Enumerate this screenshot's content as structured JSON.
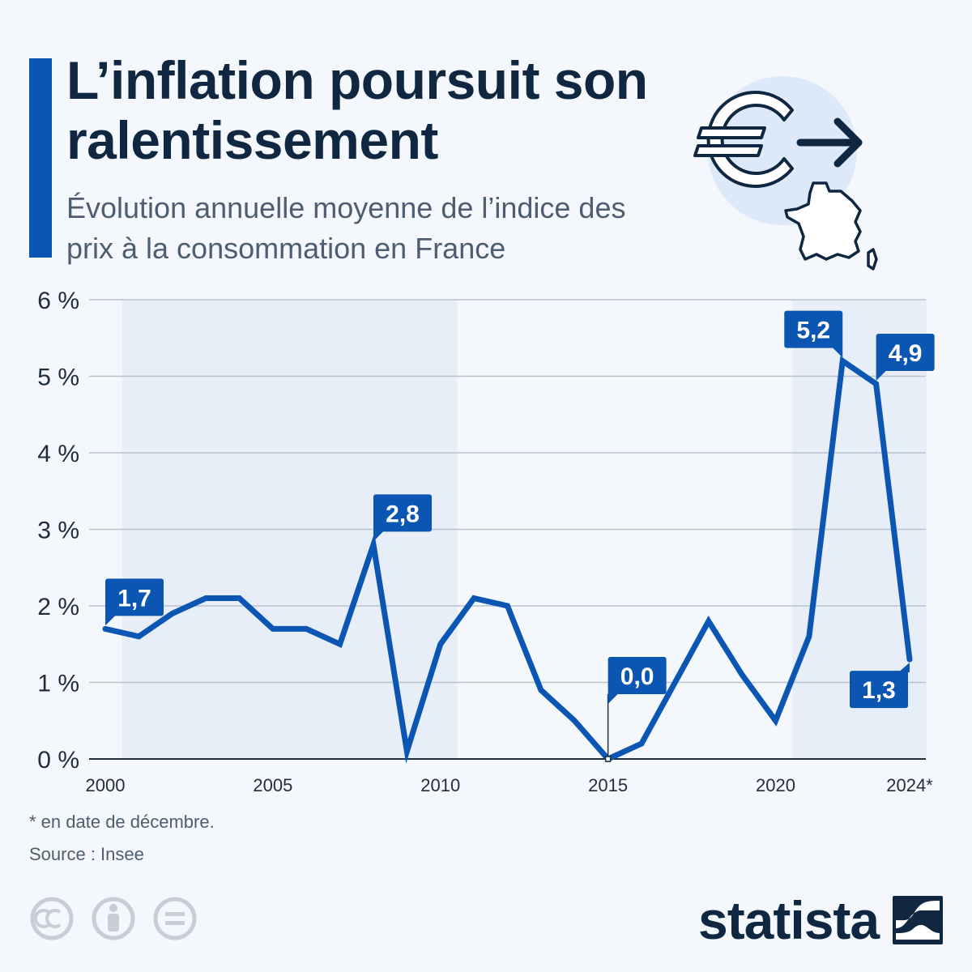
{
  "header": {
    "title": "L’inflation poursuit son ralentissement",
    "subtitle": "Évolution annuelle moyenne de l’indice des prix à la consommation en France"
  },
  "hero": {
    "icons": [
      "euro-icon",
      "arrow-right-icon",
      "france-map-icon"
    ]
  },
  "chart_data": {
    "type": "line",
    "title": "L’inflation poursuit son ralentissement",
    "subtitle": "Évolution annuelle moyenne de l’indice des prix à la consommation en France",
    "xlabel": "",
    "ylabel": "",
    "x": [
      2000,
      2001,
      2002,
      2003,
      2004,
      2005,
      2006,
      2007,
      2008,
      2009,
      2010,
      2011,
      2012,
      2013,
      2014,
      2015,
      2016,
      2017,
      2018,
      2019,
      2020,
      2021,
      2022,
      2023,
      2024
    ],
    "series": [
      {
        "values": [
          1.7,
          1.6,
          1.9,
          2.1,
          2.1,
          1.7,
          1.7,
          1.5,
          2.8,
          0.1,
          1.5,
          2.1,
          2.0,
          0.9,
          0.5,
          0.0,
          0.2,
          1.0,
          1.8,
          1.1,
          0.5,
          1.6,
          5.2,
          4.9,
          1.3
        ],
        "color": "#0b56b3"
      }
    ],
    "ylim": [
      0,
      6
    ],
    "y_ticks": [
      "0 %",
      "1 %",
      "2 %",
      "3 %",
      "4 %",
      "5 %",
      "6 %"
    ],
    "x_tick_labels": [
      "2000",
      "2005",
      "2010",
      "2015",
      "2020",
      "2024*"
    ],
    "x_tick_years": [
      2000,
      2005,
      2010,
      2015,
      2020,
      2024
    ],
    "shaded_ranges": [
      [
        2000.5,
        2010.5
      ],
      [
        2020.5,
        2024.5
      ]
    ],
    "grid": true,
    "annotations": [
      {
        "year": 2000,
        "value": 1.7,
        "label": "1,7",
        "side": "above"
      },
      {
        "year": 2008,
        "value": 2.8,
        "label": "2,8",
        "side": "above"
      },
      {
        "year": 2015,
        "value": 0.0,
        "label": "0,0",
        "side": "above-stem"
      },
      {
        "year": 2022,
        "value": 5.2,
        "label": "5,2",
        "side": "above-left"
      },
      {
        "year": 2023,
        "value": 4.9,
        "label": "4,9",
        "side": "above"
      },
      {
        "year": 2024,
        "value": 1.3,
        "label": "1,3",
        "side": "below-left"
      }
    ],
    "colors": {
      "line": "#0b56b3",
      "label_bg": "#0b56b3",
      "shade": "#e8eef8",
      "grid": "#b8c2cf",
      "tick_text": "#1f2d3d"
    }
  },
  "footer": {
    "footnote": "* en date de décembre.",
    "source": "Source : Insee",
    "license_icons": [
      "cc-icon",
      "attribution-icon",
      "no-derivatives-icon"
    ],
    "brand": "statista",
    "brand_icon": "statista-logo-icon"
  }
}
